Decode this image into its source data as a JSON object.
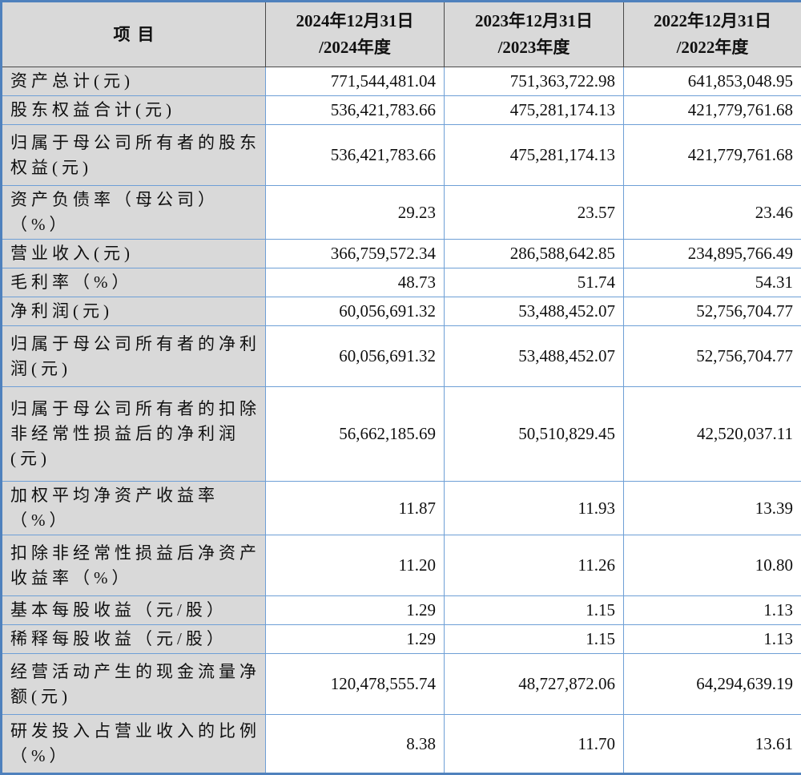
{
  "table": {
    "item_header": "项目",
    "column_headers": [
      {
        "line1": "2024年12月31日",
        "line2": "/2024年度"
      },
      {
        "line1": "2023年12月31日",
        "line2": "/2023年度"
      },
      {
        "line1": "2022年12月31日",
        "line2": "/2022年度"
      }
    ],
    "rows": [
      {
        "label": "资产总计(元)",
        "values": [
          "771,544,481.04",
          "751,363,722.98",
          "641,853,048.95"
        ]
      },
      {
        "label": "股东权益合计(元)",
        "values": [
          "536,421,783.66",
          "475,281,174.13",
          "421,779,761.68"
        ]
      },
      {
        "label": "归属于母公司所有者的股东权益(元)",
        "values": [
          "536,421,783.66",
          "475,281,174.13",
          "421,779,761.68"
        ]
      },
      {
        "label": "资产负债率（母公司）（%）",
        "values": [
          "29.23",
          "23.57",
          "23.46"
        ]
      },
      {
        "label": "营业收入(元)",
        "values": [
          "366,759,572.34",
          "286,588,642.85",
          "234,895,766.49"
        ]
      },
      {
        "label": "毛利率（%）",
        "values": [
          "48.73",
          "51.74",
          "54.31"
        ]
      },
      {
        "label": "净利润(元)",
        "values": [
          "60,056,691.32",
          "53,488,452.07",
          "52,756,704.77"
        ]
      },
      {
        "label": "归属于母公司所有者的净利润(元)",
        "values": [
          "60,056,691.32",
          "53,488,452.07",
          "52,756,704.77"
        ]
      },
      {
        "label": "归属于母公司所有者的扣除非经常性损益后的净利润(元)",
        "values": [
          "56,662,185.69",
          "50,510,829.45",
          "42,520,037.11"
        ]
      },
      {
        "label": "加权平均净资产收益率（%）",
        "values": [
          "11.87",
          "11.93",
          "13.39"
        ]
      },
      {
        "label": "扣除非经常性损益后净资产收益率（%）",
        "values": [
          "11.20",
          "11.26",
          "10.80"
        ]
      },
      {
        "label": "基本每股收益（元/股）",
        "values": [
          "1.29",
          "1.15",
          "1.13"
        ]
      },
      {
        "label": "稀释每股收益（元/股）",
        "values": [
          "1.29",
          "1.15",
          "1.13"
        ]
      },
      {
        "label": "经营活动产生的现金流量净额(元)",
        "values": [
          "120,478,555.74",
          "48,727,872.06",
          "64,294,639.19"
        ]
      },
      {
        "label": "研发投入占营业收入的比例（%）",
        "values": [
          "8.38",
          "11.70",
          "13.61"
        ]
      }
    ]
  },
  "colors": {
    "outer_border": "#4f81bd",
    "inner_border_blue": "#6e9fd6",
    "header_border_dark": "#4a4a4a",
    "shaded_cell_gray": "#d9d9d9",
    "text": "#101010"
  }
}
